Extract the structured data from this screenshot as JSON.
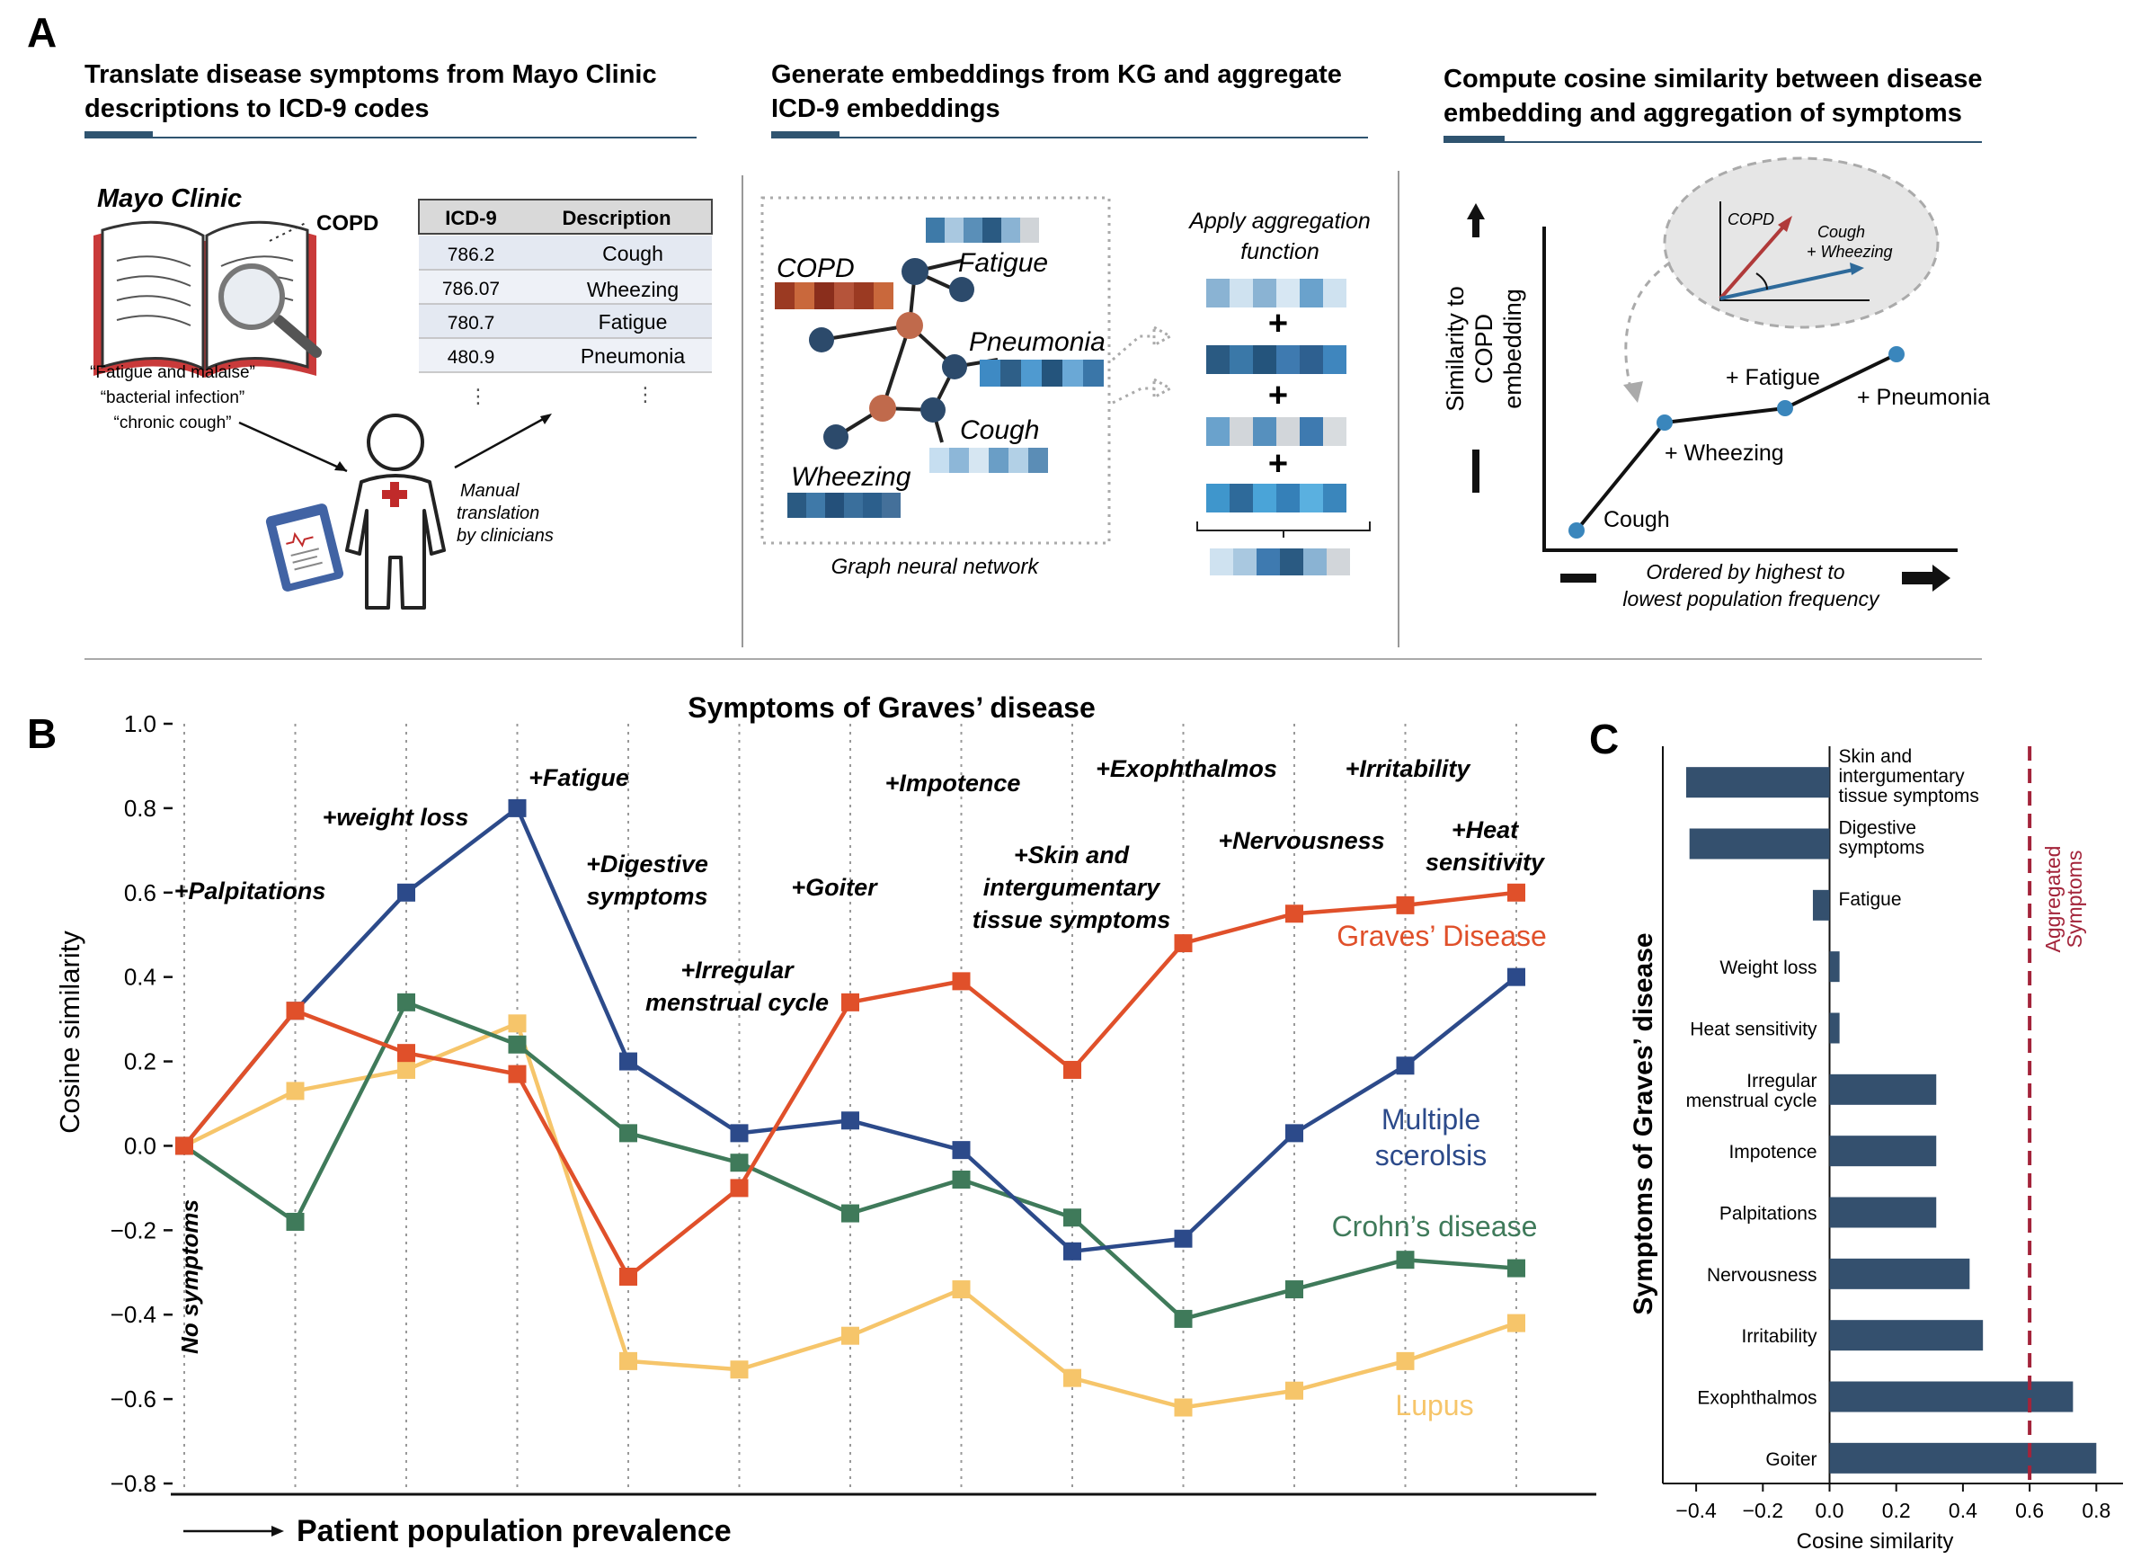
{
  "panel_labels": {
    "a": "A",
    "b": "B",
    "c": "C"
  },
  "panel_a": {
    "step1": {
      "title_line1": "Translate disease symptoms from Mayo Clinic",
      "title_line2": "descriptions to ICD-9 codes"
    },
    "step2": {
      "title_line1": "Generate embeddings from KG and aggregate",
      "title_line2": "ICD-9 embeddings"
    },
    "step3": {
      "title_line1": "Compute cosine similarity between disease",
      "title_line2": "embedding and aggregation of symptoms"
    },
    "mayo_clinic": "Mayo Clinic",
    "copd_callout": "COPD",
    "quotes": [
      "“Fatigue and malaise”",
      "“bacterial infection”",
      "“chronic cough”"
    ],
    "manual_translation": [
      "Manual",
      "translation",
      "by clinicians"
    ],
    "icd_table": {
      "headers": [
        "ICD-9",
        "Description"
      ],
      "rows": [
        [
          "786.2",
          "Cough"
        ],
        [
          "786.07",
          "Wheezing"
        ],
        [
          "780.7",
          "Fatigue"
        ],
        [
          "480.9",
          "Pneumonia"
        ]
      ],
      "ellipsis": "⋮"
    },
    "graph_labels": {
      "copd": "COPD",
      "fatigue": "Fatigue",
      "pneumonia": "Pneumonia",
      "cough": "Cough",
      "wheezing": "Wheezing"
    },
    "gnn_caption": "Graph neural network",
    "aggregation_caption": [
      "Apply aggregation",
      "function"
    ],
    "plus": "+",
    "colors": {
      "navy": "#2c4a6b",
      "rust": "#c06a4c",
      "accent_bar": "#2f5470",
      "line_blue": "#2c4a7f"
    },
    "plot": {
      "ylabel": [
        "Similarity to",
        "COPD",
        "embedding"
      ],
      "xlabel": [
        "Ordered by highest to",
        "lowest population frequency"
      ],
      "points": [
        "Cough",
        "+ Wheezing",
        "+ Fatigue",
        "+ Pneumonia"
      ],
      "inset_labels": [
        "COPD",
        "Cough",
        "+ Wheezing"
      ]
    }
  },
  "panel_b": {
    "chart_data": {
      "type": "line",
      "title": "Symptoms of Graves’ disease",
      "xlabel": "Patient population prevalence",
      "ylabel": "Cosine similarity",
      "ylim": [
        -0.8,
        1.0
      ],
      "yticks": [
        "1.0",
        "0.8",
        "0.6",
        "0.4",
        "0.2",
        "0.0",
        "−0.2",
        "−0.4",
        "−0.6",
        "−0.8"
      ],
      "ytick_values": [
        1.0,
        0.8,
        0.6,
        0.4,
        0.2,
        0.0,
        -0.2,
        -0.4,
        -0.6,
        -0.8
      ],
      "x": [
        0,
        1,
        2,
        3,
        4,
        5,
        6,
        7,
        8,
        9,
        10,
        11,
        12
      ],
      "step_labels": [
        "No symptoms",
        "+Palpitations",
        "+weight loss",
        "+Fatigue",
        "+Digestive symptoms",
        "+Irregular menstrual cycle",
        "+Goiter",
        "+Impotence",
        "+Skin and intergumentary tissue symptoms",
        "+Exophthalmos",
        "+Nervousness",
        "+Irritability",
        "+Heat sensitivity"
      ],
      "series": [
        {
          "name": "Graves’ Disease",
          "color": "#e0502a",
          "values": [
            0.0,
            0.32,
            0.22,
            0.17,
            -0.31,
            -0.1,
            0.34,
            0.39,
            0.18,
            0.48,
            0.55,
            0.57,
            0.6
          ]
        },
        {
          "name": "Multiple scerolsis",
          "color": "#2c4a8a",
          "values": [
            0.0,
            0.32,
            0.6,
            0.8,
            0.2,
            0.03,
            0.06,
            -0.01,
            -0.25,
            -0.22,
            0.03,
            0.19,
            0.4
          ]
        },
        {
          "name": "Crohn’s disease",
          "color": "#3f7a5a",
          "values": [
            0.0,
            -0.18,
            0.34,
            0.24,
            0.03,
            -0.04,
            -0.16,
            -0.08,
            -0.17,
            -0.41,
            -0.34,
            -0.27,
            -0.29
          ]
        },
        {
          "name": "Lupus",
          "color": "#f6c56a",
          "values": [
            0.0,
            0.13,
            0.18,
            0.29,
            -0.51,
            -0.53,
            -0.45,
            -0.34,
            -0.55,
            -0.62,
            -0.58,
            -0.51,
            -0.42
          ]
        }
      ]
    }
  },
  "panel_c": {
    "chart_data": {
      "type": "bar",
      "orientation": "horizontal",
      "ylabel": "Symptoms of Graves’ disease",
      "xlabel": "Cosine similarity",
      "xlim": [
        -0.5,
        0.88
      ],
      "xticks": [
        "−0.4",
        "−0.2",
        "0.0",
        "0.2",
        "0.4",
        "0.6",
        "0.8"
      ],
      "xtick_values": [
        -0.4,
        -0.2,
        0.0,
        0.2,
        0.4,
        0.6,
        0.8
      ],
      "categories": [
        "Skin and intergumentary tissue symptoms",
        "Digestive symptoms",
        "Fatigue",
        "Weight loss",
        "Heat sensitivity",
        "Irregular menstrual cycle",
        "Impotence",
        "Palpitations",
        "Nervousness",
        "Irritability",
        "Exophthalmos",
        "Goiter"
      ],
      "category_lines": [
        [
          "Skin and",
          "intergumentary",
          "tissue symptoms"
        ],
        [
          "Digestive",
          "symptoms"
        ],
        [
          "Fatigue"
        ],
        [
          "Weight loss"
        ],
        [
          "Heat sensitivity"
        ],
        [
          "Irregular",
          "menstrual cycle"
        ],
        [
          "Impotence"
        ],
        [
          "Palpitations"
        ],
        [
          "Nervousness"
        ],
        [
          "Irritability"
        ],
        [
          "Exophthalmos"
        ],
        [
          "Goiter"
        ]
      ],
      "values": [
        -0.43,
        -0.42,
        -0.05,
        0.03,
        0.03,
        0.32,
        0.32,
        0.32,
        0.42,
        0.46,
        0.73,
        0.8
      ],
      "reference_value": 0.6,
      "reference_label": [
        "Aggregated",
        "Symptoms"
      ],
      "bar_color": "#34506e",
      "reference_color": "#a3243a"
    }
  }
}
